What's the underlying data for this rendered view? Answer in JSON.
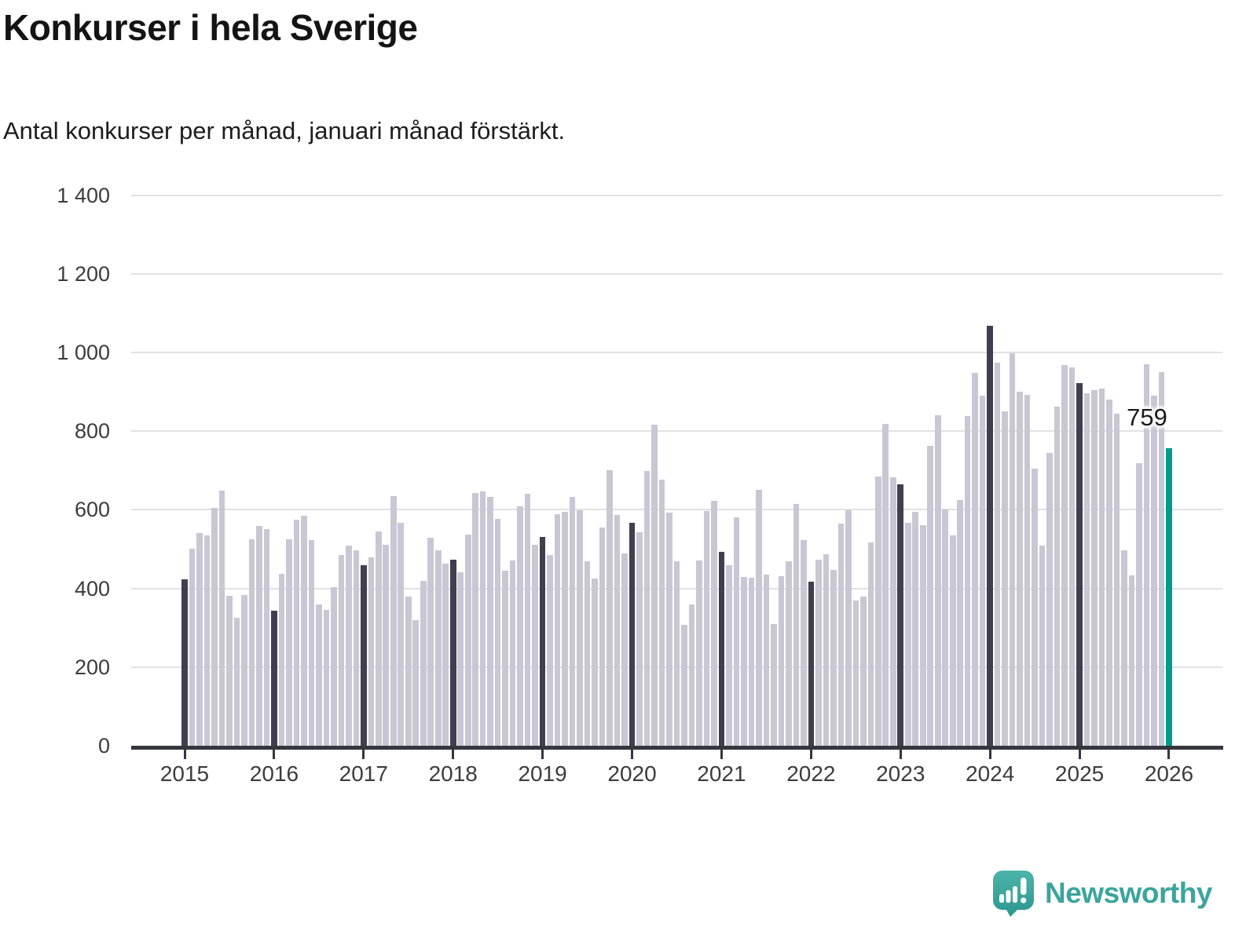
{
  "title": "Konkurser i hela Sverige",
  "subtitle": "Antal konkurser per månad, januari månad förstärkt.",
  "annotation": {
    "label": "759"
  },
  "footer": {
    "brand": "Newsworthy",
    "icon": "newsworthy-speech-bubble-bar-chart-icon"
  },
  "colors": {
    "bar_default": "#c9c7d4",
    "bar_january": "#413f4f",
    "bar_highlight": "#009a8e",
    "axis": "#36363e",
    "grid": "#e2e2e2",
    "text": "#141414",
    "brand": "#3aa59c"
  },
  "chart_data": {
    "type": "bar",
    "title": "Konkurser i hela Sverige",
    "subtitle": "Antal konkurser per månad, januari månad förstärkt.",
    "frequency": "monthly",
    "start": "2015-01",
    "end": "2026-01",
    "grid": "horizontal",
    "ylim": [
      0,
      1400
    ],
    "y_ticks": [
      0,
      200,
      400,
      600,
      800,
      1000,
      1200,
      1400
    ],
    "y_tick_labels": [
      "0",
      "200",
      "400",
      "600",
      "800",
      "1 000",
      "1 200",
      "1 400"
    ],
    "x_tick_labels": [
      "2015",
      "2016",
      "2017",
      "2018",
      "2019",
      "2020",
      "2021",
      "2022",
      "2023",
      "2024",
      "2025",
      "2026"
    ],
    "january_emphasis": true,
    "highlight_last": {
      "month": "2026-01",
      "value": 759,
      "label": "759"
    },
    "series": [
      {
        "name": "Antal konkurser per månad",
        "values": [
          425,
          503,
          543,
          536,
          606,
          651,
          383,
          328,
          386,
          526,
          561,
          553,
          345,
          440,
          526,
          577,
          586,
          524,
          361,
          348,
          406,
          487,
          510,
          498,
          462,
          480,
          546,
          513,
          637,
          569,
          381,
          321,
          422,
          530,
          498,
          465,
          475,
          443,
          538,
          644,
          649,
          634,
          579,
          447,
          473,
          610,
          642,
          513,
          533,
          487,
          590,
          597,
          635,
          600,
          471,
          428,
          556,
          703,
          588,
          491,
          569,
          545,
          700,
          818,
          679,
          594,
          471,
          309,
          361,
          473,
          599,
          624,
          494,
          462,
          583,
          432,
          429,
          652,
          438,
          312,
          434,
          470,
          616,
          524,
          420,
          475,
          489,
          449,
          566,
          601,
          372,
          381,
          518,
          687,
          821,
          685,
          666,
          568,
          597,
          562,
          765,
          843,
          603,
          536,
          626,
          840,
          949,
          893,
          1070,
          975,
          852,
          1000,
          903,
          894,
          707,
          510,
          746,
          865,
          969,
          964,
          924,
          899,
          907,
          910,
          882,
          847,
          498,
          436,
          721,
          972,
          892,
          952,
          759
        ]
      }
    ]
  }
}
